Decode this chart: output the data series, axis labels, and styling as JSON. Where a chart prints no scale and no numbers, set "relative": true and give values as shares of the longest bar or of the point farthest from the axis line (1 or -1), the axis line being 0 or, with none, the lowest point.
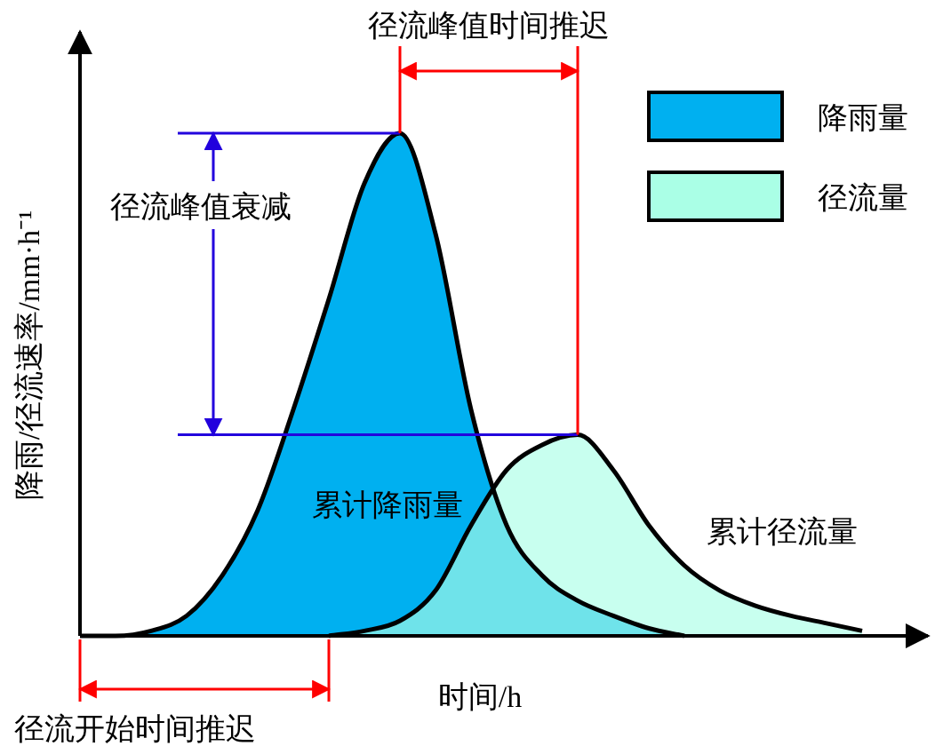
{
  "chart_data": {
    "type": "area",
    "relative": true,
    "xlabel": "时间/h",
    "ylabel": "降雨/径流速率/mm·h⁻¹",
    "categories": [
      null,
      null,
      null,
      null,
      null,
      null,
      null,
      null,
      null,
      null,
      null,
      null,
      null,
      null,
      null,
      null,
      null,
      null,
      null,
      null,
      null,
      null,
      null,
      null
    ],
    "series": [
      {
        "name": "降雨量",
        "color": "#00b0f0",
        "values": [
          0,
          0,
          0.01,
          0.04,
          0.12,
          0.25,
          0.45,
          0.67,
          0.9,
          1.0,
          0.8,
          0.45,
          0.22,
          0.12,
          0.07,
          0.04,
          0.015,
          0,
          null,
          null,
          null,
          null,
          null,
          null
        ]
      },
      {
        "name": "径流量",
        "color": "#aaffe6",
        "values": [
          null,
          null,
          null,
          null,
          null,
          null,
          null,
          0,
          0.01,
          0.03,
          0.09,
          0.22,
          0.33,
          0.38,
          0.4,
          0.33,
          0.22,
          0.14,
          0.09,
          0.06,
          0.04,
          0.025,
          0.01,
          null
        ]
      }
    ],
    "legend": "top right",
    "ref_lines": [
      {
        "axis": "y",
        "value": 1,
        "color": "#2200dd"
      },
      {
        "axis": "y",
        "value": 0.4,
        "color": "#2200dd"
      }
    ],
    "annotations": [
      "径流峰值时间推迟",
      "径流峰值衰减",
      "累计降雨量",
      "累计径流量",
      "径流开始时间推迟"
    ]
  }
}
